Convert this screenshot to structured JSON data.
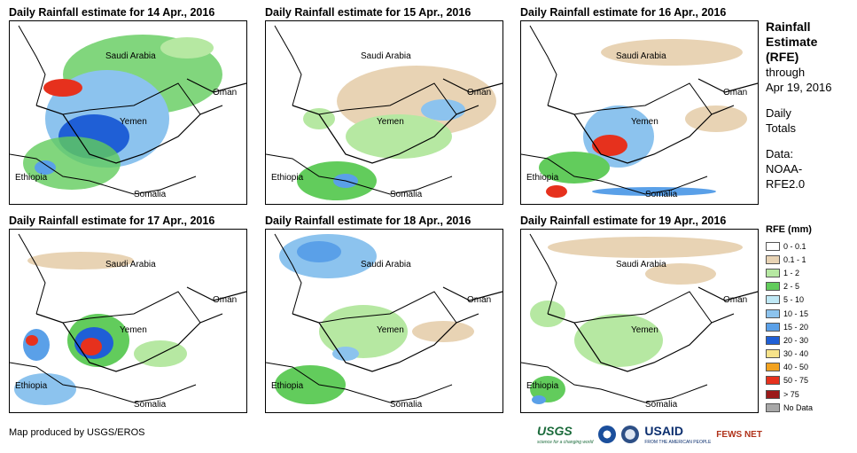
{
  "panels": [
    {
      "title": "Daily Rainfall estimate for 14 Apr., 2016",
      "labels": {
        "saudi": "Saudi Arabia",
        "oman": "Oman",
        "yemen": "Yemen",
        "ethiopia": "Ethiopia",
        "somalia": "Somalia"
      }
    },
    {
      "title": "Daily Rainfall estimate for 15 Apr., 2016",
      "labels": {
        "saudi": "Saudi Arabia",
        "oman": "Oman",
        "yemen": "Yemen",
        "ethiopia": "Ethiopia",
        "somalia": "Somalia"
      }
    },
    {
      "title": "Daily Rainfall estimate for 16 Apr., 2016",
      "labels": {
        "saudi": "Saudi Arabia",
        "oman": "Oman",
        "yemen": "Yemen",
        "ethiopia": "Ethiopia",
        "somalia": "Somalia"
      }
    },
    {
      "title": "Daily Rainfall estimate for 17 Apr., 2016",
      "labels": {
        "saudi": "Saudi Arabia",
        "oman": "Oman",
        "yemen": "Yemen",
        "ethiopia": "Ethiopia",
        "somalia": "Somalia"
      }
    },
    {
      "title": "Daily Rainfall estimate for 18 Apr., 2016",
      "labels": {
        "saudi": "Saudi Arabia",
        "oman": "Oman",
        "yemen": "Yemen",
        "ethiopia": "Ethiopia",
        "somalia": "Somalia"
      }
    },
    {
      "title": "Daily Rainfall estimate for 19 Apr., 2016",
      "labels": {
        "saudi": "Saudi Arabia",
        "oman": "Oman",
        "yemen": "Yemen",
        "ethiopia": "Ethiopia",
        "somalia": "Somalia"
      }
    }
  ],
  "side": {
    "heading": [
      "Rainfall",
      "Estimate",
      "(RFE)"
    ],
    "through": "through",
    "date": "Apr 19, 2016",
    "daily": [
      "Daily",
      "Totals"
    ],
    "data": [
      "Data:",
      "NOAA-",
      "RFE2.0"
    ]
  },
  "legend": {
    "title": "RFE (mm)",
    "items": [
      {
        "label": "0 - 0.1",
        "color": "#ffffff"
      },
      {
        "label": "0.1 - 1",
        "color": "#e8d3b4"
      },
      {
        "label": "1 - 2",
        "color": "#b6e8a2"
      },
      {
        "label": "2 - 5",
        "color": "#62cc5c"
      },
      {
        "label": "5 - 10",
        "color": "#bfe8f5"
      },
      {
        "label": "10 - 15",
        "color": "#8cc3ee"
      },
      {
        "label": "15 - 20",
        "color": "#5aa0e8"
      },
      {
        "label": "20 - 30",
        "color": "#1f5fd6"
      },
      {
        "label": "30 - 40",
        "color": "#f7e38a"
      },
      {
        "label": "40 - 50",
        "color": "#f2a21f"
      },
      {
        "label": "50 - 75",
        "color": "#e6311d"
      },
      {
        "label": "> 75",
        "color": "#9b1a1a"
      },
      {
        "label": "No Data",
        "color": "#a8a8a8"
      }
    ]
  },
  "credit": "Map produced by USGS/EROS",
  "logos": {
    "usgs": "USGS",
    "usgs_tag": "science for a changing world",
    "usaid": "USAID",
    "usaid_tag": "FROM THE AMERICAN PEOPLE",
    "fews": "FEWS NET"
  }
}
